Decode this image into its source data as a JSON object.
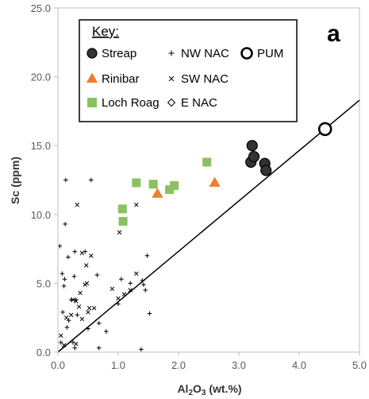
{
  "chart_data": {
    "type": "scatter",
    "panel_label": "a",
    "xlabel": {
      "main": "Al",
      "sub1": "2",
      "mid": "O",
      "sub2": "3",
      "tail": " (wt.%)"
    },
    "ylabel": "Sc (ppm)",
    "xlim": [
      0,
      5
    ],
    "ylim": [
      0,
      25
    ],
    "xticks": [
      "0.0",
      "1.0",
      "2.0",
      "3.0",
      "4.0",
      "5.0"
    ],
    "xtick_values": [
      0,
      1,
      2,
      3,
      4,
      5
    ],
    "yticks": [
      "0.0",
      "5.0",
      "10.0",
      "15.0",
      "20.0",
      "25.0"
    ],
    "ytick_values": [
      0,
      5,
      10,
      15,
      20,
      25
    ],
    "grid": false,
    "legend_title": "Key:",
    "legend_placement": "top-left",
    "reference_line": {
      "x": [
        0,
        5
      ],
      "y": [
        0,
        18.3
      ],
      "color": "#000000"
    },
    "series": [
      {
        "name": "Streap",
        "marker": "circle-filled",
        "color": "#333333",
        "points": [
          [
            3.2,
            13.8
          ],
          [
            3.22,
            15.0
          ],
          [
            3.25,
            14.2
          ],
          [
            3.43,
            13.7
          ],
          [
            3.45,
            13.2
          ]
        ]
      },
      {
        "name": "Rinibar",
        "marker": "triangle",
        "color": "#ed7d31",
        "points": [
          [
            1.65,
            11.5
          ],
          [
            2.6,
            12.3
          ]
        ]
      },
      {
        "name": "Loch Roag",
        "marker": "square",
        "color": "#8cc161",
        "points": [
          [
            1.07,
            10.4
          ],
          [
            1.08,
            9.5
          ],
          [
            1.3,
            12.3
          ],
          [
            1.58,
            12.2
          ],
          [
            1.85,
            11.8
          ],
          [
            1.93,
            12.1
          ],
          [
            2.47,
            13.8
          ]
        ]
      },
      {
        "name": "NW NAC",
        "marker": "plus",
        "color": "#000000",
        "points": [
          [
            0.03,
            7.7
          ],
          [
            0.05,
            0.7
          ],
          [
            0.07,
            5.7
          ],
          [
            0.08,
            2.9
          ],
          [
            0.1,
            4.8
          ],
          [
            0.11,
            5.3
          ],
          [
            0.12,
            9.3
          ],
          [
            0.13,
            12.5
          ],
          [
            0.15,
            1.8
          ],
          [
            0.17,
            6.9
          ],
          [
            0.18,
            2.3
          ],
          [
            0.22,
            3.8
          ],
          [
            0.25,
            0.7
          ],
          [
            0.27,
            5.5
          ],
          [
            0.28,
            7.3
          ],
          [
            0.3,
            3.8
          ],
          [
            0.32,
            2.7
          ],
          [
            0.45,
            7.3
          ],
          [
            0.5,
            1.7
          ],
          [
            0.55,
            12.5
          ],
          [
            0.65,
            5.6
          ],
          [
            0.68,
            2.1
          ],
          [
            0.8,
            1.5
          ],
          [
            1.0,
            3.5
          ],
          [
            1.05,
            5.3
          ],
          [
            1.2,
            5.0
          ],
          [
            1.4,
            5.2
          ],
          [
            1.42,
            4.9
          ],
          [
            1.45,
            4.5
          ],
          [
            1.52,
            2.8
          ],
          [
            1.38,
            0.2
          ],
          [
            1.48,
            7.0
          ],
          [
            0.68,
            0.3
          ],
          [
            0.28,
            0.3
          ]
        ]
      },
      {
        "name": "SW NAC",
        "marker": "x",
        "color": "#000000",
        "points": [
          [
            0.05,
            1.2
          ],
          [
            0.14,
            2.5
          ],
          [
            0.22,
            2.7
          ],
          [
            0.25,
            3.8
          ],
          [
            0.3,
            3.7
          ],
          [
            0.32,
            10.7
          ],
          [
            0.35,
            3.3
          ],
          [
            0.37,
            4.3
          ],
          [
            0.4,
            2.4
          ],
          [
            0.4,
            7.2
          ],
          [
            0.45,
            4.9
          ],
          [
            0.47,
            6.3
          ],
          [
            0.48,
            5.0
          ],
          [
            0.5,
            2.9
          ],
          [
            0.52,
            3.2
          ],
          [
            0.55,
            7.0
          ],
          [
            0.6,
            3.2
          ],
          [
            0.9,
            4.6
          ],
          [
            1.0,
            3.9
          ],
          [
            1.02,
            8.7
          ],
          [
            1.1,
            4.2
          ],
          [
            1.2,
            4.5
          ],
          [
            1.3,
            5.7
          ],
          [
            1.3,
            10.7
          ],
          [
            0.3,
            0.6
          ],
          [
            0.1,
            0.5
          ]
        ]
      },
      {
        "name": "E NAC",
        "marker": "diamond-open",
        "color": "#000000",
        "points": []
      },
      {
        "name": "PUM",
        "marker": "circle-open",
        "color": "#000000",
        "points": [
          [
            4.43,
            16.2
          ]
        ]
      }
    ]
  }
}
